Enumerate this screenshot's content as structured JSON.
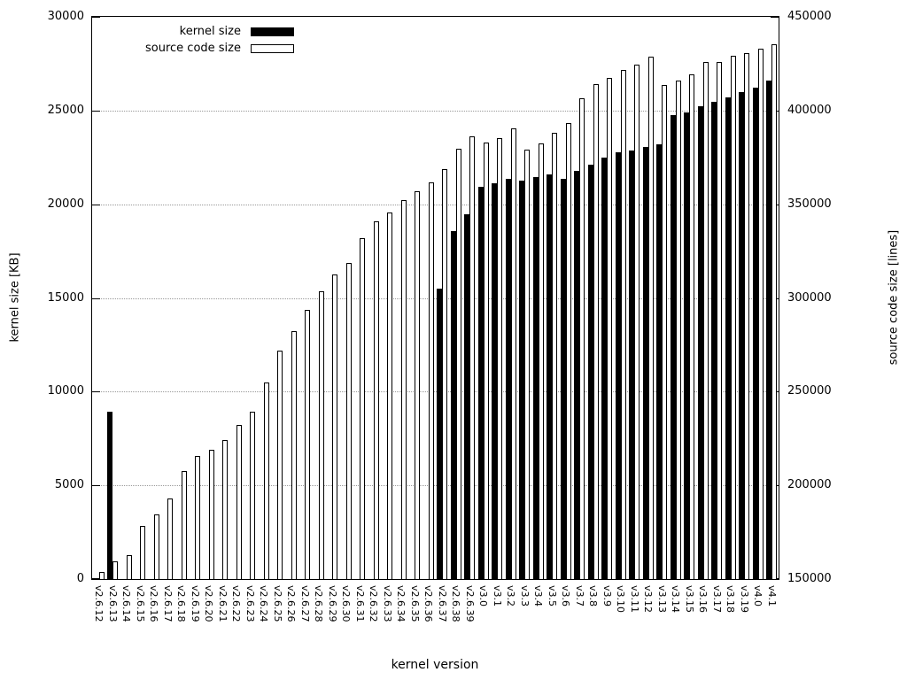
{
  "chart_data": {
    "type": "bar",
    "title": "",
    "xlabel": "kernel version",
    "ylabel_left": "kernel size [KB]",
    "ylabel_right": "source code size [lines]",
    "grid": "horizontal dotted lines at left-axis ticks, legend top-left inside plot, no chart title",
    "y_left_axis": {
      "min": 0,
      "max": 30000,
      "ticks": [
        0,
        5000,
        10000,
        15000,
        20000,
        25000,
        30000
      ]
    },
    "y_right_axis": {
      "min": 150000,
      "max": 450000,
      "ticks": [
        150000,
        200000,
        250000,
        300000,
        350000,
        400000,
        450000
      ]
    },
    "legend": [
      {
        "label": "kernel size",
        "swatch": "black-filled"
      },
      {
        "label": "source code size",
        "swatch": "white-open"
      }
    ],
    "categories": [
      "v2.6.12",
      "v2.6.13",
      "v2.6.14",
      "v2.6.15",
      "v2.6.16",
      "v2.6.17",
      "v2.6.18",
      "v2.6.19",
      "v2.6.20",
      "v2.6.21",
      "v2.6.22",
      "v2.6.23",
      "v2.6.24",
      "v2.6.25",
      "v2.6.26",
      "v2.6.27",
      "v2.6.28",
      "v2.6.29",
      "v2.6.30",
      "v2.6.31",
      "v2.6.32",
      "v2.6.33",
      "v2.6.34",
      "v2.6.35",
      "v2.6.36",
      "v2.6.37",
      "v2.6.38",
      "v2.6.39",
      "v3.0",
      "v3.1",
      "v3.2",
      "v3.3",
      "v3.4",
      "v3.5",
      "v3.6",
      "v3.7",
      "v3.8",
      "v3.9",
      "v3.10",
      "v3.11",
      "v3.12",
      "v3.13",
      "v3.14",
      "v3.15",
      "v3.16",
      "v3.17",
      "v3.18",
      "v3.19",
      "v4.0",
      "v4.1"
    ],
    "series": [
      {
        "name": "kernel size",
        "axis": "left",
        "unit": "KB",
        "values": [
          null,
          8950,
          null,
          null,
          null,
          null,
          null,
          null,
          null,
          null,
          null,
          null,
          null,
          null,
          null,
          null,
          null,
          null,
          null,
          null,
          null,
          null,
          null,
          null,
          null,
          15500,
          18550,
          19450,
          20950,
          21100,
          21350,
          21250,
          21450,
          21600,
          21350,
          21800,
          22100,
          22500,
          22750,
          22850,
          23050,
          23200,
          24750,
          24900,
          25250,
          25450,
          25700,
          26000,
          26200,
          26600
        ]
      },
      {
        "name": "source code size",
        "axis": "right",
        "unit": "lines",
        "values": [
          153800,
          159600,
          162900,
          178500,
          184500,
          192900,
          207500,
          215600,
          219200,
          224300,
          232400,
          239300,
          254700,
          272000,
          282300,
          293700,
          303500,
          312500,
          318600,
          331800,
          340800,
          345500,
          352100,
          356800,
          361500,
          368700,
          379400,
          386000,
          383100,
          385500,
          390500,
          379200,
          382400,
          388100,
          393400,
          406700,
          414200,
          417500,
          421800,
          424600,
          428900,
          413800,
          416100,
          419200,
          425800,
          425800,
          429400,
          430700,
          432900,
          435300
        ]
      }
    ]
  },
  "colors": {
    "background": "#ffffff",
    "bar_kernel_fill": "#000000",
    "bar_source_fill": "#ffffff",
    "bar_border": "#000000",
    "axis": "#000000",
    "gridline": "#999999",
    "text": "#000000"
  }
}
